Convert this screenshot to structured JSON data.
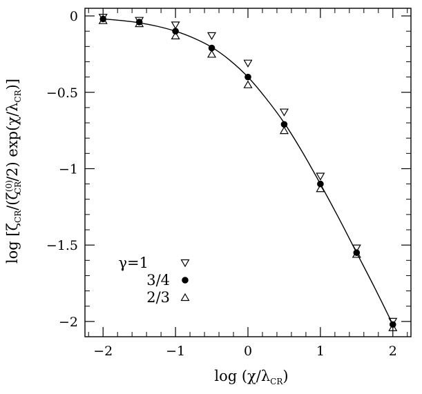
{
  "chart_data": {
    "type": "scatter",
    "title": "",
    "xlabel": "log (χ/λ_CR)",
    "ylabel": "log [ζ_CR/(ζ_CR^(0)/2) exp(χ/λ_CR)]",
    "xlim": [
      -2.25,
      2.25
    ],
    "ylim": [
      -2.1,
      0.05
    ],
    "grid": false,
    "x_ticks": [
      -2,
      -1,
      0,
      1,
      2
    ],
    "y_ticks": [
      0,
      -0.5,
      -1,
      -1.5,
      -2
    ],
    "x_tick_labels": [
      "−2",
      "−1",
      "0",
      "1",
      "2"
    ],
    "y_tick_labels": [
      "0",
      "−0.5",
      "−1",
      "−1.5",
      "−2"
    ],
    "legend_position": "bottom-left",
    "series": [
      {
        "name": "γ=1",
        "marker": "triangle-down-open",
        "x": [
          -2,
          -1.5,
          -1,
          -0.5,
          0,
          0.5,
          1,
          1.5,
          2
        ],
        "y": [
          -0.01,
          -0.03,
          -0.06,
          -0.13,
          -0.31,
          -0.63,
          -1.05,
          -1.52,
          -2.0
        ]
      },
      {
        "name": "3/4",
        "marker": "circle-filled",
        "x": [
          -2,
          -1.5,
          -1,
          -0.5,
          0,
          0.5,
          1,
          1.5,
          2
        ],
        "y": [
          -0.02,
          -0.04,
          -0.1,
          -0.21,
          -0.4,
          -0.71,
          -1.1,
          -1.55,
          -2.02
        ]
      },
      {
        "name": "2/3",
        "marker": "triangle-up-open",
        "x": [
          -2,
          -1.5,
          -1,
          -0.5,
          0,
          0.5,
          1,
          1.5,
          2
        ],
        "y": [
          -0.03,
          -0.05,
          -0.13,
          -0.25,
          -0.45,
          -0.75,
          -1.13,
          -1.56,
          -2.04
        ]
      }
    ],
    "fit_curve": {
      "x": [
        -2,
        -1.75,
        -1.5,
        -1.25,
        -1,
        -0.75,
        -0.5,
        -0.25,
        0,
        0.25,
        0.5,
        0.75,
        1,
        1.25,
        1.5,
        1.75,
        2
      ],
      "y": [
        -0.02,
        -0.03,
        -0.045,
        -0.068,
        -0.1,
        -0.145,
        -0.205,
        -0.29,
        -0.4,
        -0.54,
        -0.7,
        -0.89,
        -1.1,
        -1.32,
        -1.55,
        -1.78,
        -2.02
      ]
    }
  }
}
